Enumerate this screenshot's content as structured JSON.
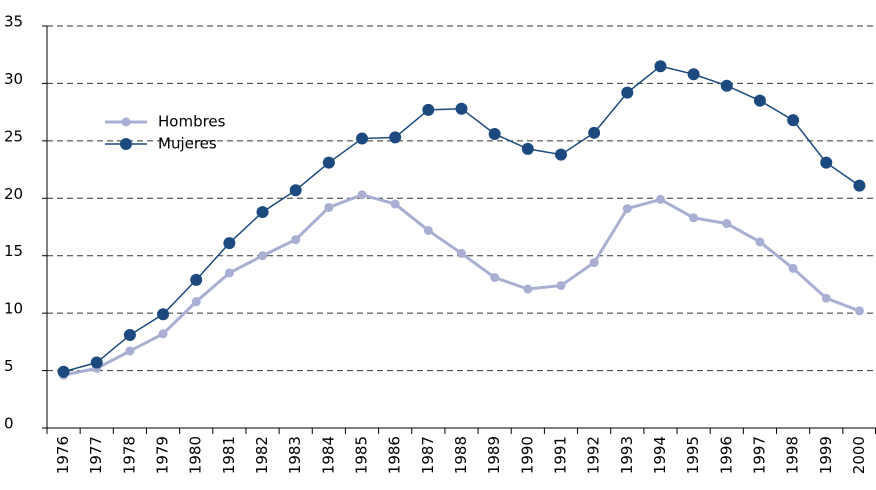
{
  "chart_data": {
    "type": "line",
    "categories": [
      "1976",
      "1977",
      "1978",
      "1979",
      "1980",
      "1981",
      "1982",
      "1983",
      "1984",
      "1985",
      "1986",
      "1987",
      "1988",
      "1989",
      "1990",
      "1991",
      "1992",
      "1993",
      "1994",
      "1995",
      "1996",
      "1997",
      "1998",
      "1999",
      "2000"
    ],
    "series": [
      {
        "name": "Hombres",
        "color": "#a9aed3",
        "values": [
          4.6,
          5.2,
          6.7,
          8.2,
          11.0,
          13.5,
          15.0,
          16.4,
          19.2,
          20.3,
          19.5,
          17.2,
          15.2,
          13.1,
          12.1,
          12.4,
          14.4,
          19.1,
          19.9,
          18.3,
          17.8,
          16.2,
          13.9,
          11.3,
          10.2
        ]
      },
      {
        "name": "Mujeres",
        "color": "#1c4a7e",
        "values": [
          4.9,
          5.7,
          8.1,
          9.9,
          12.9,
          16.1,
          18.8,
          20.7,
          23.1,
          25.2,
          25.3,
          27.7,
          27.8,
          25.6,
          24.3,
          23.8,
          25.7,
          29.2,
          31.5,
          30.8,
          29.8,
          28.5,
          26.8,
          23.1,
          21.1
        ]
      }
    ],
    "ylim": [
      0,
      35
    ],
    "yticks": [
      0,
      5,
      10,
      15,
      20,
      25,
      30,
      35
    ],
    "grid": true,
    "legend": "upper-left"
  }
}
